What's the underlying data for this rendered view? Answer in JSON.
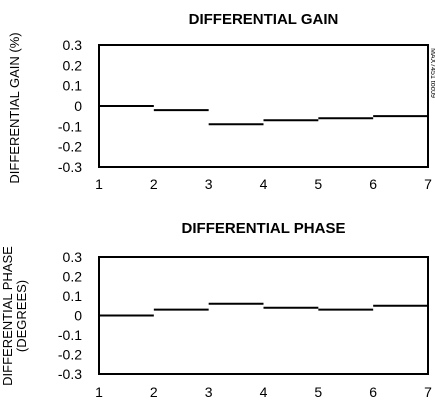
{
  "chart_data": [
    {
      "type": "step",
      "title": "DIFFERENTIAL GAIN",
      "ylabel": [
        "DIFFERENTIAL GAIN (%)"
      ],
      "xlabel": "",
      "xlim": [
        1,
        7
      ],
      "ylim": [
        -0.3,
        0.3
      ],
      "x_ticks": [
        "1",
        "2",
        "3",
        "4",
        "5",
        "6",
        "7"
      ],
      "y_ticks": [
        "0.3",
        "0.2",
        "0.1",
        "0",
        "-0.1",
        "-0.2",
        "-0.3"
      ],
      "side_label": "MAX7451 toc09",
      "steps": [
        {
          "x0": 1,
          "x1": 2,
          "y": 0.0
        },
        {
          "x0": 2,
          "x1": 3,
          "y": -0.02
        },
        {
          "x0": 3,
          "x1": 4,
          "y": -0.09
        },
        {
          "x0": 4,
          "x1": 5,
          "y": -0.07
        },
        {
          "x0": 5,
          "x1": 6,
          "y": -0.06
        },
        {
          "x0": 6,
          "x1": 7,
          "y": -0.05
        }
      ]
    },
    {
      "type": "step",
      "title": "DIFFERENTIAL PHASE",
      "ylabel": [
        "DIFFERENTIAL PHASE",
        "(DEGREES)"
      ],
      "xlabel": "",
      "xlim": [
        1,
        7
      ],
      "ylim": [
        -0.3,
        0.3
      ],
      "x_ticks": [
        "1",
        "2",
        "3",
        "4",
        "5",
        "6",
        "7"
      ],
      "y_ticks": [
        "0.3",
        "0.2",
        "0.1",
        "0",
        "-0.1",
        "-0.2",
        "-0.3"
      ],
      "steps": [
        {
          "x0": 1,
          "x1": 2,
          "y": 0.0
        },
        {
          "x0": 2,
          "x1": 3,
          "y": 0.03
        },
        {
          "x0": 3,
          "x1": 4,
          "y": 0.06
        },
        {
          "x0": 4,
          "x1": 5,
          "y": 0.04
        },
        {
          "x0": 5,
          "x1": 6,
          "y": 0.03
        },
        {
          "x0": 6,
          "x1": 7,
          "y": 0.05
        }
      ]
    }
  ]
}
